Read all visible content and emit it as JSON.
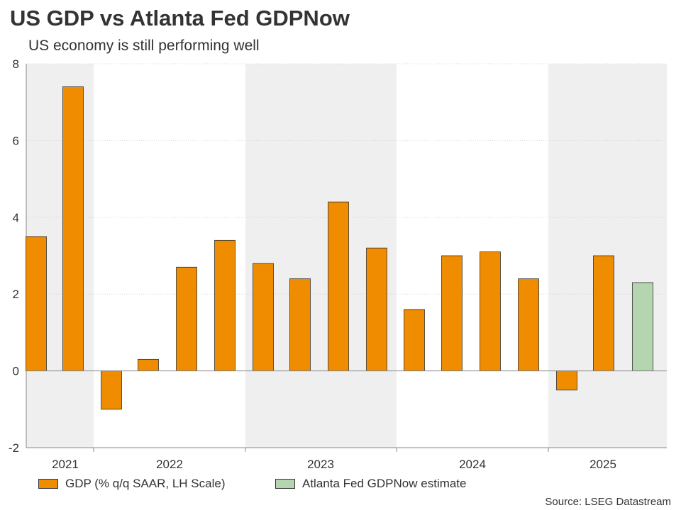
{
  "header": {
    "title": "US GDP vs Atlanta Fed GDPNow",
    "subtitle": "US economy is still performing well"
  },
  "source": "Source: LSEG Datastream",
  "legend": {
    "gdp_label": "GDP (% q/q SAAR, LH Scale)",
    "nowcast_label": "Atlanta Fed GDPNow estimate"
  },
  "colors": {
    "gdp": "#f08c00",
    "nowcast": "#b5d4b0",
    "shade": "#efefef",
    "outline": "#333333"
  },
  "chart_data": {
    "type": "bar",
    "ylim": [
      -2,
      8
    ],
    "yticks": [
      -2,
      0,
      2,
      4,
      6,
      8
    ],
    "year_labels": [
      "2021",
      "2022",
      "2023",
      "2024",
      "2025"
    ],
    "x": [
      "2021 Q1",
      "2021 Q2",
      "2022 Q1",
      "2022 Q2",
      "2022 Q3",
      "2022 Q4",
      "2023 Q1",
      "2023 Q2",
      "2023 Q3",
      "2023 Q4",
      "2024 Q1",
      "2024 Q2",
      "2024 Q3",
      "2024 Q4",
      "2025 Q1",
      "2025 Q2",
      "2025 Q3"
    ],
    "series": [
      {
        "name": "GDP (% q/q SAAR, LH Scale)",
        "values": [
          3.5,
          7.4,
          -1.0,
          0.3,
          2.7,
          3.4,
          2.8,
          2.4,
          4.4,
          3.2,
          1.6,
          3.0,
          3.1,
          2.4,
          -0.5,
          3.0,
          null
        ]
      },
      {
        "name": "Atlanta Fed GDPNow estimate",
        "values": [
          null,
          null,
          null,
          null,
          null,
          null,
          null,
          null,
          null,
          null,
          null,
          null,
          null,
          null,
          null,
          null,
          2.3
        ]
      }
    ],
    "grid": true,
    "legend_position": "bottom-left"
  }
}
